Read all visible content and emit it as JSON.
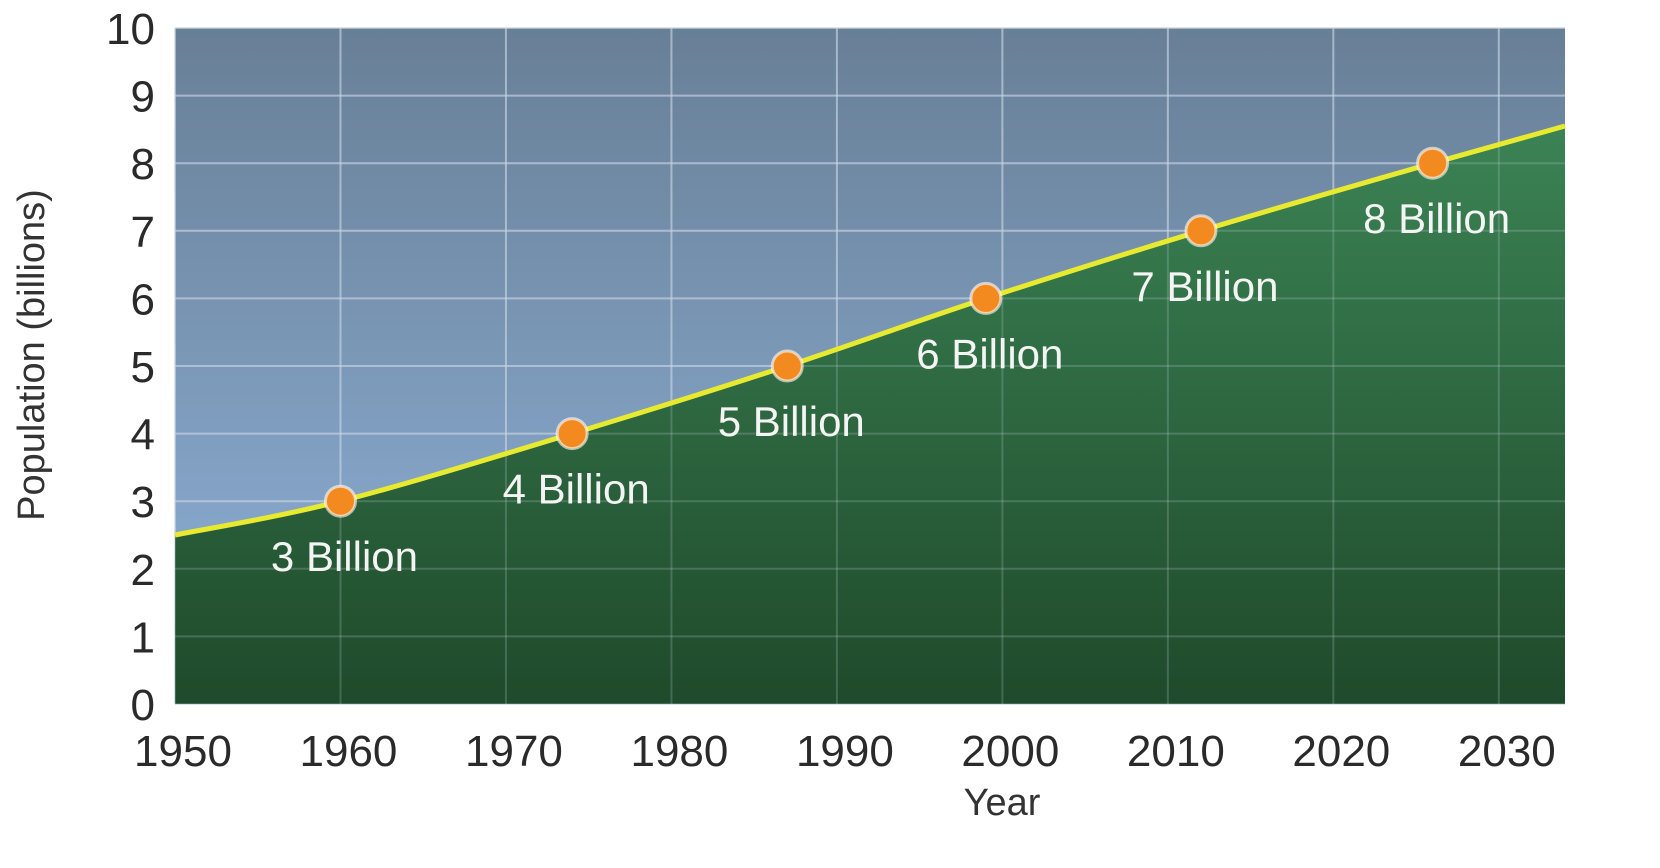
{
  "chart_data": {
    "type": "area",
    "title": "",
    "xlabel": "Year",
    "ylabel": "Population (billions)",
    "xlim": [
      1950,
      2034
    ],
    "ylim": [
      0,
      10
    ],
    "x_ticks": [
      1950,
      1960,
      1970,
      1980,
      1990,
      2000,
      2010,
      2020,
      2030
    ],
    "y_ticks": [
      0,
      1,
      2,
      3,
      4,
      5,
      6,
      7,
      8,
      9,
      10
    ],
    "grid": true,
    "curve": {
      "x": [
        1950,
        1960,
        1974,
        1987,
        1999,
        2012,
        2026,
        2034
      ],
      "y": [
        2.5,
        3.0,
        4.0,
        5.0,
        6.0,
        7.0,
        8.0,
        8.55
      ]
    },
    "milestones": [
      {
        "x": 1960,
        "y": 3,
        "label": "3 Billion"
      },
      {
        "x": 1974,
        "y": 4,
        "label": "4 Billion"
      },
      {
        "x": 1987,
        "y": 5,
        "label": "5 Billion"
      },
      {
        "x": 1999,
        "y": 6,
        "label": "6 Billion"
      },
      {
        "x": 2012,
        "y": 7,
        "label": "7 Billion"
      },
      {
        "x": 2026,
        "y": 8,
        "label": "8 Billion"
      }
    ],
    "colors": {
      "sky_top": "#687f96",
      "sky_bottom": "#8fb2da",
      "area_top": "#3b8354",
      "area_bottom": "#1f4a2b",
      "line": "#e8ea30",
      "marker": "#f28a1f",
      "grid": "#c9d6e3"
    }
  }
}
